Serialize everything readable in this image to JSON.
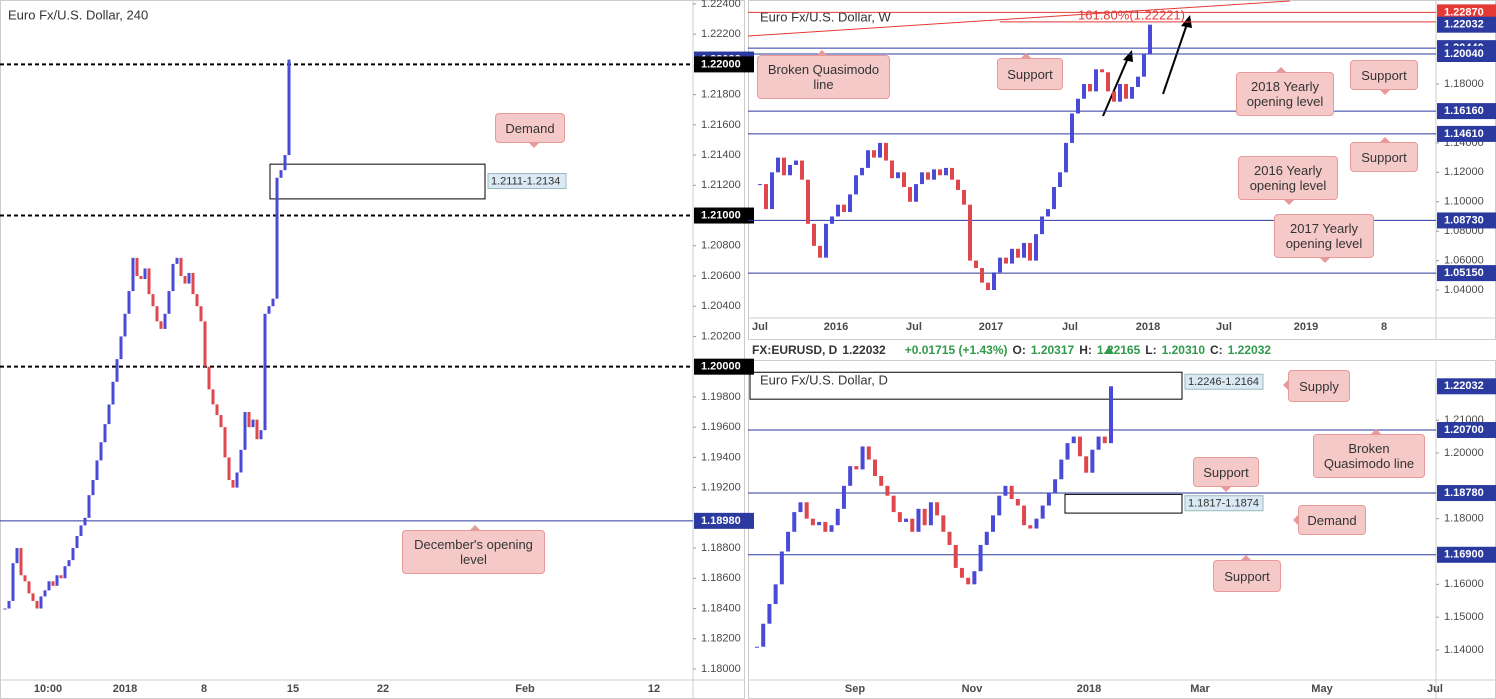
{
  "chart_data": [
    {
      "type": "candlestick",
      "title": "Euro Fx/U.S. Dollar, 240",
      "values": [
        1.184,
        1.1845,
        1.187,
        1.188,
        1.1862,
        1.1858,
        1.185,
        1.1845,
        1.184,
        1.1848,
        1.1852,
        1.1858,
        1.1855,
        1.1862,
        1.186,
        1.1868,
        1.1872,
        1.188,
        1.1888,
        1.1895,
        1.19,
        1.1915,
        1.1925,
        1.1938,
        1.195,
        1.1962,
        1.1975,
        1.199,
        1.2005,
        1.202,
        1.2035,
        1.205,
        1.2072,
        1.206,
        1.2058,
        1.2065,
        1.2048,
        1.204,
        1.203,
        1.2025,
        1.2035,
        1.205,
        1.2068,
        1.2072,
        1.206,
        1.2055,
        1.2062,
        1.2048,
        1.204,
        1.203,
        1.2,
        1.1985,
        1.1975,
        1.1968,
        1.196,
        1.194,
        1.1925,
        1.192,
        1.193,
        1.1945,
        1.197,
        1.196,
        1.1965,
        1.1952,
        1.1958,
        1.2035,
        1.204,
        1.2045,
        1.2125,
        1.213,
        1.214,
        1.22032
      ],
      "ylim": [
        1.17927,
        1.22426
      ],
      "yticks": [
        {
          "value": 1.18,
          "label": "1.18000"
        },
        {
          "value": 1.182,
          "label": "1.18200"
        },
        {
          "value": 1.184,
          "label": "1.18400"
        },
        {
          "value": 1.186,
          "label": "1.18600"
        },
        {
          "value": 1.188,
          "label": "1.18800"
        },
        {
          "value": 1.192,
          "label": "1.19200"
        },
        {
          "value": 1.194,
          "label": "1.19400"
        },
        {
          "value": 1.196,
          "label": "1.19600"
        },
        {
          "value": 1.198,
          "label": "1.19800"
        },
        {
          "value": 1.202,
          "label": "1.20200"
        },
        {
          "value": 1.204,
          "label": "1.20400"
        },
        {
          "value": 1.206,
          "label": "1.20600"
        },
        {
          "value": 1.208,
          "label": "1.20800"
        },
        {
          "value": 1.212,
          "label": "1.21200"
        },
        {
          "value": 1.214,
          "label": "1.21400"
        },
        {
          "value": 1.216,
          "label": "1.21600"
        },
        {
          "value": 1.218,
          "label": "1.21800"
        },
        {
          "value": 1.222,
          "label": "1.22200"
        },
        {
          "value": 1.224,
          "label": "1.22400"
        }
      ],
      "xtick_labels": [
        "10:00",
        "2018",
        "8",
        "15",
        "22",
        "Feb",
        "12"
      ],
      "levels": [
        {
          "value": 1.22032,
          "label": "1.22032",
          "color": "#2b3a9e",
          "line": "none",
          "tag": "axis"
        },
        {
          "value": 1.22,
          "label": "1.22000",
          "color": "#000000",
          "line": "dashed",
          "tag": "axis"
        },
        {
          "value": 1.21,
          "label": "1.21000",
          "color": "#000000",
          "line": "dashed",
          "tag": "axis"
        },
        {
          "value": 1.2,
          "label": "1.20000",
          "color": "#000000",
          "line": "dashed",
          "tag": "axis"
        },
        {
          "value": 1.1898,
          "label": "1.18980",
          "color": "#2b3a9e",
          "line": "solid",
          "tag": "axis"
        }
      ],
      "zones": [
        {
          "from": 1.2111,
          "to": 1.2134,
          "label": "1.2111-1.2134"
        }
      ],
      "annotations": [
        "Demand",
        "December's opening level"
      ]
    },
    {
      "type": "candlestick",
      "title": "Euro Fx/U.S. Dollar, W",
      "values": [
        1.112,
        1.095,
        1.12,
        1.13,
        1.118,
        1.125,
        1.128,
        1.115,
        1.085,
        1.07,
        1.062,
        1.085,
        1.09,
        1.098,
        1.093,
        1.105,
        1.118,
        1.123,
        1.135,
        1.13,
        1.14,
        1.128,
        1.116,
        1.12,
        1.11,
        1.1,
        1.112,
        1.12,
        1.115,
        1.122,
        1.118,
        1.123,
        1.115,
        1.108,
        1.098,
        1.06,
        1.055,
        1.045,
        1.04,
        1.052,
        1.062,
        1.058,
        1.068,
        1.062,
        1.072,
        1.06,
        1.078,
        1.09,
        1.095,
        1.11,
        1.12,
        1.14,
        1.16,
        1.17,
        1.18,
        1.175,
        1.19,
        1.188,
        1.175,
        1.168,
        1.18,
        1.17,
        1.178,
        1.185,
        1.2,
        1.22032
      ],
      "ylim": [
        1.021,
        1.2371
      ],
      "yticks": [
        {
          "value": 1.04,
          "label": "1.04000"
        },
        {
          "value": 1.06,
          "label": "1.06000"
        },
        {
          "value": 1.08,
          "label": "1.08000"
        },
        {
          "value": 1.1,
          "label": "1.10000"
        },
        {
          "value": 1.12,
          "label": "1.12000"
        },
        {
          "value": 1.14,
          "label": "1.14000"
        },
        {
          "value": 1.18,
          "label": "1.18000"
        }
      ],
      "xtick_labels": [
        "Jul",
        "2016",
        "Jul",
        "2017",
        "Jul",
        "2018",
        "Jul",
        "2019",
        "8"
      ],
      "levels": [
        {
          "value": 1.2287,
          "label": "1.22870",
          "color": "#e53935",
          "line": "solid",
          "tag": "axis"
        },
        {
          "value": 1.22221,
          "label": "161.80%(1.22221)",
          "color": "#e53935",
          "line": "solid",
          "tag": "inline"
        },
        {
          "value": 1.22032,
          "label": "1.22032",
          "color": "#2b3a9e",
          "line": "none",
          "tag": "axis"
        },
        {
          "value": 1.2044,
          "label": "1.20440",
          "color": "#2b3a9e",
          "line": "solid",
          "tag": "axis"
        },
        {
          "value": 1.2004,
          "label": "1.20040",
          "color": "#2b3a9e",
          "line": "solid",
          "tag": "axis"
        },
        {
          "value": 1.1616,
          "label": "1.16160",
          "color": "#2b3a9e",
          "line": "solid",
          "tag": "axis"
        },
        {
          "value": 1.1461,
          "label": "1.14610",
          "color": "#2b3a9e",
          "line": "solid",
          "tag": "axis"
        },
        {
          "value": 1.0873,
          "label": "1.08730",
          "color": "#2b3a9e",
          "line": "solid",
          "tag": "axis"
        },
        {
          "value": 1.0515,
          "label": "1.05150",
          "color": "#2b3a9e",
          "line": "solid",
          "tag": "axis"
        }
      ],
      "zones": [],
      "annotations": [
        "Broken Quasimodo line",
        "Support",
        "2018 Yearly opening level",
        "Support",
        "Support",
        "2016 Yearly opening level",
        "2017 Yearly opening level"
      ]
    },
    {
      "type": "candlestick",
      "title": "Euro Fx/U.S. Dollar, D",
      "values": [
        1.141,
        1.148,
        1.154,
        1.16,
        1.17,
        1.176,
        1.182,
        1.185,
        1.18,
        1.178,
        1.179,
        1.176,
        1.178,
        1.183,
        1.19,
        1.196,
        1.195,
        1.202,
        1.198,
        1.193,
        1.19,
        1.187,
        1.182,
        1.179,
        1.18,
        1.176,
        1.183,
        1.178,
        1.185,
        1.181,
        1.176,
        1.172,
        1.165,
        1.162,
        1.16,
        1.164,
        1.172,
        1.176,
        1.181,
        1.187,
        1.19,
        1.186,
        1.184,
        1.178,
        1.177,
        1.18,
        1.184,
        1.188,
        1.192,
        1.198,
        1.203,
        1.205,
        1.199,
        1.194,
        1.201,
        1.205,
        1.203,
        1.22032
      ],
      "ylim": [
        1.13086,
        1.22833
      ],
      "yticks": [
        {
          "value": 1.14,
          "label": "1.14000"
        },
        {
          "value": 1.15,
          "label": "1.15000"
        },
        {
          "value": 1.16,
          "label": "1.16000"
        },
        {
          "value": 1.18,
          "label": "1.18000"
        },
        {
          "value": 1.2,
          "label": "1.20000"
        },
        {
          "value": 1.21,
          "label": "1.21000"
        }
      ],
      "xtick_labels": [
        "Sep",
        "Nov",
        "2018",
        "Mar",
        "May",
        "Jul"
      ],
      "levels": [
        {
          "value": 1.22032,
          "label": "1.22032",
          "color": "#2b3a9e",
          "line": "none",
          "tag": "axis"
        },
        {
          "value": 1.207,
          "label": "1.20700",
          "color": "#2b3a9e",
          "line": "solid",
          "tag": "axis"
        },
        {
          "value": 1.1878,
          "label": "1.18780",
          "color": "#2b3a9e",
          "line": "solid",
          "tag": "axis"
        },
        {
          "value": 1.169,
          "label": "1.16900",
          "color": "#2b3a9e",
          "line": "solid",
          "tag": "axis"
        }
      ],
      "zones": [
        {
          "from": 1.2246,
          "to": 1.2164,
          "label": "1.2246-1.2164"
        },
        {
          "from": 1.1817,
          "to": 1.1874,
          "label": "1.1817-1.1874"
        }
      ],
      "annotations": [
        "Supply",
        "Broken Quasimodo line",
        "Support",
        "Demand",
        "Support"
      ]
    }
  ],
  "header": {
    "symbol": "FX:EURUSD, D",
    "last": "1.22032",
    "change": "+0.01715 (+1.43%)",
    "open_label": "O:",
    "open": "1.20317",
    "high_label": "H:",
    "high": "1.22165",
    "low_label": "L:",
    "low": "1.20310",
    "close_label": "C:",
    "close": "1.22032"
  }
}
